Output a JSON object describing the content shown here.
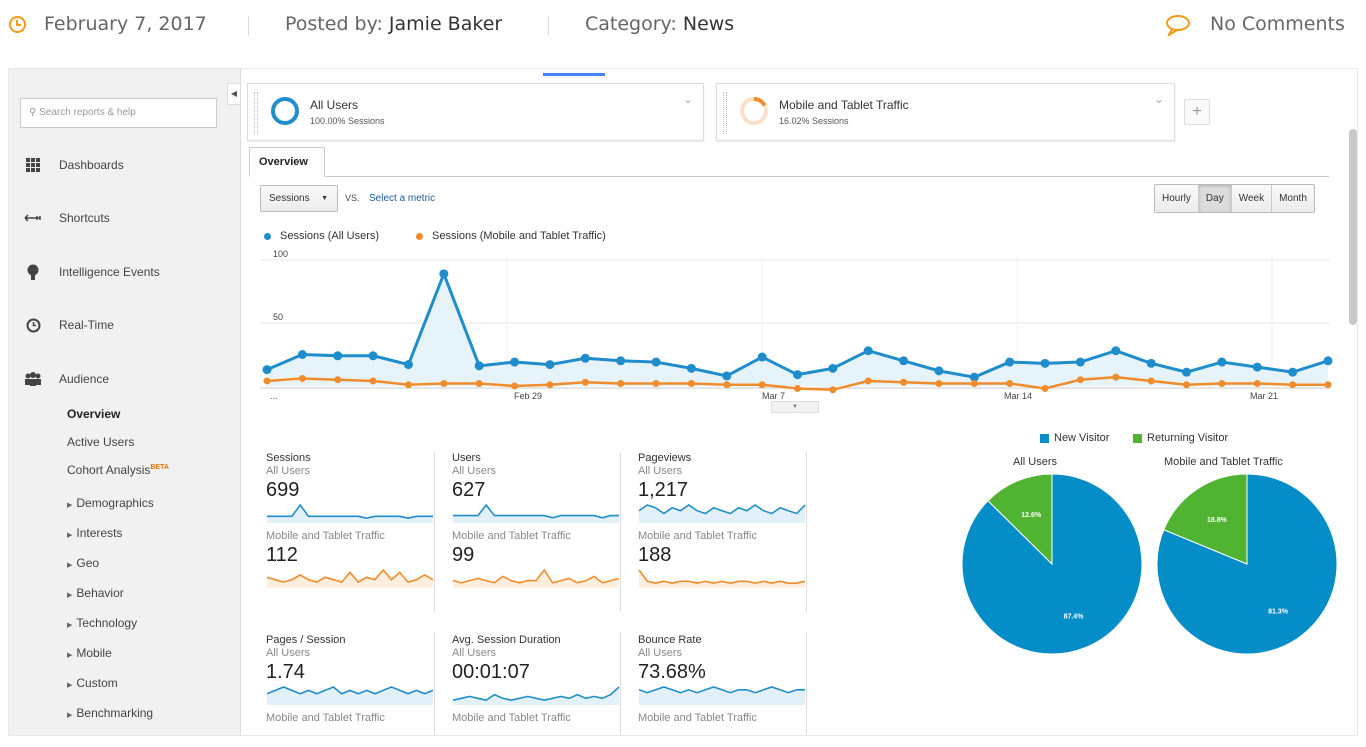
{
  "post_meta": {
    "date": "February 7, 2017",
    "posted_by_label": "Posted by:",
    "author": "Jamie Baker",
    "category_label": "Category:",
    "category": "News",
    "comments": "No Comments"
  },
  "sidebar": {
    "search_placeholder": "Search reports & help",
    "items": [
      {
        "label": "Dashboards",
        "icon": "grid-icon"
      },
      {
        "label": "Shortcuts",
        "icon": "arrows-icon"
      },
      {
        "label": "Intelligence Events",
        "icon": "lightbulb-icon"
      },
      {
        "label": "Real-Time",
        "icon": "clock-icon"
      },
      {
        "label": "Audience",
        "icon": "people-icon"
      }
    ],
    "audience_sub": [
      {
        "label": "Overview",
        "active": true
      },
      {
        "label": "Active Users"
      },
      {
        "label": "Cohort Analysis",
        "badge": "BETA"
      },
      {
        "label": "Demographics",
        "caret": true
      },
      {
        "label": "Interests",
        "caret": true
      },
      {
        "label": "Geo",
        "caret": true
      },
      {
        "label": "Behavior",
        "caret": true
      },
      {
        "label": "Technology",
        "caret": true
      },
      {
        "label": "Mobile",
        "caret": true
      },
      {
        "label": "Custom",
        "caret": true
      },
      {
        "label": "Benchmarking",
        "caret": true
      }
    ]
  },
  "segments": [
    {
      "name": "All Users",
      "sessions": "100.00% Sessions",
      "color": "#1f8dcb"
    },
    {
      "name": "Mobile and Tablet Traffic",
      "sessions": "16.02% Sessions",
      "color": "#f08c2b"
    }
  ],
  "tabs": {
    "overview": "Overview"
  },
  "controls": {
    "metric": "Sessions",
    "vs": "VS.",
    "select_metric": "Select a metric",
    "time_buttons": [
      "Hourly",
      "Day",
      "Week",
      "Month"
    ],
    "selected_time": "Day"
  },
  "colors": {
    "all_users": "#1f8dcb",
    "mobile": "#f08c2b",
    "new_visitor": "#058dc7",
    "returning_visitor": "#50b432"
  },
  "chart_data": [
    {
      "type": "line",
      "series": [
        {
          "name": "Sessions (All Users)",
          "values": [
            13,
            25,
            24,
            24,
            17,
            89,
            16,
            19,
            17,
            22,
            20,
            19,
            14,
            8,
            23,
            9,
            14,
            28,
            20,
            12,
            7,
            19,
            18,
            19,
            28,
            18,
            11,
            19,
            15,
            11,
            20
          ]
        },
        {
          "name": "Sessions (Mobile and Tablet Traffic)",
          "values": [
            4,
            6,
            5,
            4,
            1,
            2,
            2,
            0,
            1,
            3,
            2,
            2,
            2,
            1,
            1,
            -2,
            -3,
            4,
            3,
            2,
            2,
            2,
            -2,
            5,
            7,
            4,
            1,
            2,
            2,
            1,
            1
          ]
        }
      ],
      "x_labels": [
        "...",
        "Feb 29",
        "Mar 7",
        "Mar 14",
        "Mar 21"
      ],
      "y_ticks": [
        100,
        50
      ],
      "ylim": [
        0,
        100
      ],
      "grid": true,
      "legend": "top-left"
    },
    {
      "type": "pie",
      "legend": "top",
      "legend_entries": [
        "New Visitor",
        "Returning Visitor"
      ],
      "pies": [
        {
          "title": "All Users",
          "slices": [
            {
              "label": "New Visitor",
              "value": 87.4,
              "text": "87.4%"
            },
            {
              "label": "Returning Visitor",
              "value": 12.6,
              "text": "12.6%"
            }
          ]
        },
        {
          "title": "Mobile and Tablet Traffic",
          "slices": [
            {
              "label": "New Visitor",
              "value": 81.3,
              "text": "81.3%"
            },
            {
              "label": "Returning Visitor",
              "value": 18.8,
              "text": "18.8%"
            }
          ]
        }
      ]
    }
  ],
  "metrics": [
    {
      "title": "Sessions",
      "all_label": "All Users",
      "all_value": "699",
      "mobile_label": "Mobile and Tablet Traffic",
      "mobile_value": "112",
      "all_spark": [
        3,
        3,
        3,
        3,
        9,
        3,
        3,
        3,
        3,
        3,
        3,
        3,
        2,
        3,
        3,
        3,
        3,
        2,
        3,
        3,
        3
      ],
      "mobile_spark": [
        4,
        3,
        2,
        3,
        5,
        3,
        2,
        4,
        3,
        2,
        6,
        2,
        4,
        3,
        7,
        3,
        6,
        2,
        3,
        5,
        3
      ]
    },
    {
      "title": "Users",
      "all_label": "All Users",
      "all_value": "627",
      "mobile_label": "Mobile and Tablet Traffic",
      "mobile_value": "99",
      "all_spark": [
        3,
        3,
        3,
        3,
        8,
        3,
        3,
        3,
        3,
        3,
        3,
        3,
        2,
        3,
        3,
        3,
        3,
        3,
        2,
        3,
        3
      ],
      "mobile_spark": [
        3,
        2,
        3,
        4,
        3,
        2,
        5,
        3,
        2,
        3,
        3,
        8,
        2,
        3,
        4,
        2,
        3,
        5,
        2,
        3,
        4
      ]
    },
    {
      "title": "Pageviews",
      "all_label": "All Users",
      "all_value": "1,217",
      "mobile_label": "Mobile and Tablet Traffic",
      "mobile_value": "188",
      "all_spark": [
        4,
        6,
        5,
        3,
        5,
        4,
        6,
        4,
        3,
        5,
        4,
        3,
        5,
        4,
        6,
        4,
        3,
        5,
        4,
        3,
        6
      ],
      "mobile_spark": [
        9,
        3,
        2,
        3,
        2,
        3,
        3,
        2,
        3,
        2,
        3,
        2,
        3,
        3,
        2,
        3,
        2,
        3,
        2,
        2,
        3
      ]
    },
    {
      "title": "Pages / Session",
      "all_label": "All Users",
      "all_value": "1.74",
      "mobile_label": "Mobile and Tablet Traffic",
      "mobile_value": "",
      "all_spark": [
        3,
        4,
        5,
        4,
        3,
        4,
        3,
        4,
        5,
        3,
        4,
        3,
        4,
        3,
        4,
        5,
        4,
        3,
        4,
        3,
        4
      ],
      "mobile_spark": []
    },
    {
      "title": "Avg. Session Duration",
      "all_label": "All Users",
      "all_value": "00:01:07",
      "mobile_label": "Mobile and Tablet Traffic",
      "mobile_value": "",
      "all_spark": [
        2,
        3,
        4,
        3,
        2,
        5,
        3,
        2,
        3,
        4,
        3,
        2,
        3,
        4,
        3,
        5,
        3,
        4,
        3,
        5,
        9
      ],
      "mobile_spark": []
    },
    {
      "title": "Bounce Rate",
      "all_label": "All Users",
      "all_value": "73.68%",
      "mobile_label": "Mobile and Tablet Traffic",
      "mobile_value": "",
      "all_spark": [
        5,
        4,
        5,
        6,
        5,
        4,
        5,
        4,
        5,
        6,
        5,
        4,
        5,
        5,
        4,
        5,
        6,
        5,
        4,
        5,
        5
      ],
      "mobile_spark": []
    }
  ]
}
